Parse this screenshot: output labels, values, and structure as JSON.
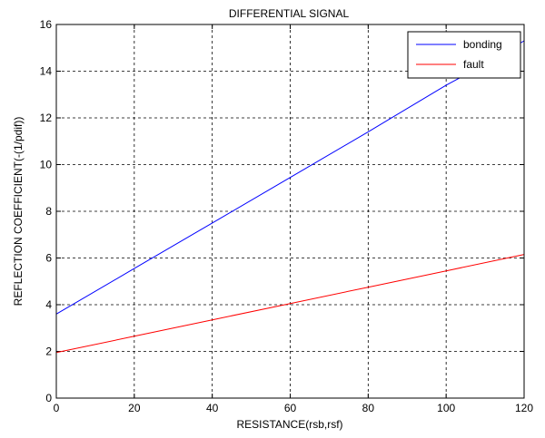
{
  "chart_data": {
    "type": "line",
    "title": "DIFFERENTIAL SIGNAL",
    "xlabel": "RESISTANCE(rsb,rsf)",
    "ylabel": "REFLECTION COEFFICIENT(-(1/pdif))",
    "xlim": [
      0,
      120
    ],
    "ylim": [
      0,
      16
    ],
    "xticks": [
      0,
      20,
      40,
      60,
      80,
      100,
      120
    ],
    "yticks": [
      0,
      2,
      4,
      6,
      8,
      10,
      12,
      14,
      16
    ],
    "grid": true,
    "legend_position": "top-right",
    "series": [
      {
        "name": "bonding",
        "color": "#0000ff",
        "x": [
          0,
          20,
          40,
          60,
          80,
          100,
          110,
          120
        ],
        "y": [
          3.6,
          5.55,
          7.5,
          9.45,
          11.4,
          13.4,
          14.3,
          15.3
        ]
      },
      {
        "name": "fault",
        "color": "#ff0000",
        "x": [
          0,
          20,
          40,
          60,
          80,
          100,
          120
        ],
        "y": [
          1.95,
          2.65,
          3.35,
          4.05,
          4.75,
          5.45,
          6.15
        ]
      }
    ]
  }
}
